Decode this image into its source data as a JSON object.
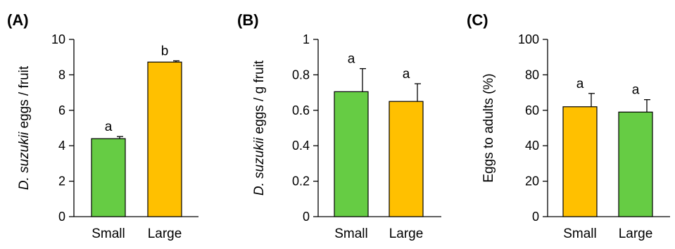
{
  "chart_data": [
    {
      "panel": "(A)",
      "type": "bar",
      "categories": [
        "Small",
        "Large"
      ],
      "values": [
        4.4,
        8.72
      ],
      "errors": [
        0.12,
        0.07
      ],
      "significance": [
        "a",
        "b"
      ],
      "colors": [
        "#66CC44",
        "#FFC000"
      ],
      "ylabel_italic": "D. suzukii",
      "ylabel_rest": " eggs / fruit",
      "ylim": [
        0,
        10
      ],
      "yticks": [
        0,
        2,
        4,
        6,
        8,
        10
      ],
      "ytick_labels": [
        "0",
        "2",
        "4",
        "6",
        "8",
        "10"
      ]
    },
    {
      "panel": "(B)",
      "type": "bar",
      "categories": [
        "Small",
        "Large"
      ],
      "values": [
        0.705,
        0.65
      ],
      "errors": [
        0.13,
        0.1
      ],
      "significance": [
        "a",
        "a"
      ],
      "colors": [
        "#66CC44",
        "#FFC000"
      ],
      "ylabel_italic": "D. suzukii",
      "ylabel_rest": " eggs / g fruit",
      "ylim": [
        0,
        1
      ],
      "yticks": [
        0,
        0.2,
        0.4,
        0.6,
        0.8,
        1
      ],
      "ytick_labels": [
        "0",
        "0.2",
        "0.4",
        "0.6",
        "0.8",
        "1"
      ]
    },
    {
      "panel": "(C)",
      "type": "bar",
      "categories": [
        "Small",
        "Large"
      ],
      "values": [
        62,
        59
      ],
      "errors": [
        7.5,
        7
      ],
      "significance": [
        "a",
        "a"
      ],
      "colors": [
        "#FFC000",
        "#66CC44"
      ],
      "ylabel_italic": "",
      "ylabel_rest": "Eggs to adults (%)",
      "ylim": [
        0,
        100
      ],
      "yticks": [
        0,
        20,
        40,
        60,
        80,
        100
      ],
      "ytick_labels": [
        "0",
        "20",
        "40",
        "60",
        "80",
        "100"
      ]
    }
  ]
}
